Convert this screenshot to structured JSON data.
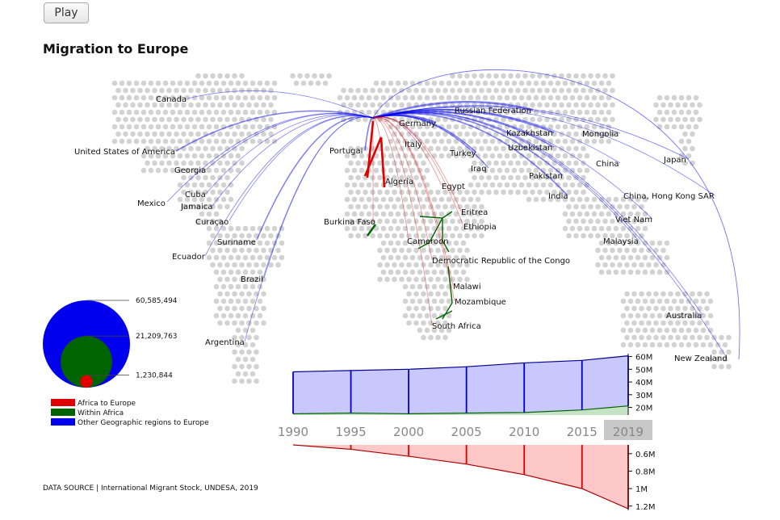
{
  "controls": {
    "play_label": "Play"
  },
  "title": "Migration to Europe",
  "source": "DATA SOURCE | International Migrant Stock, UNDESA, 2019",
  "colors": {
    "africa_to_europe": "#e00000",
    "within_africa": "#006400",
    "other_to_europe": "#0000ee"
  },
  "chart_data": [
    {
      "type": "map",
      "title": "Migration to Europe",
      "countries": [
        {
          "name": "Canada",
          "group": "other"
        },
        {
          "name": "United States of America",
          "group": "other"
        },
        {
          "name": "Georgia",
          "group": "other"
        },
        {
          "name": "Mexico",
          "group": "other"
        },
        {
          "name": "Cuba",
          "group": "other"
        },
        {
          "name": "Jamaica",
          "group": "other"
        },
        {
          "name": "Curaçao",
          "group": "other"
        },
        {
          "name": "Suriname",
          "group": "other"
        },
        {
          "name": "Ecuador",
          "group": "other"
        },
        {
          "name": "Brazil",
          "group": "other"
        },
        {
          "name": "Argentina",
          "group": "other"
        },
        {
          "name": "Portugal",
          "group": "other"
        },
        {
          "name": "Germany",
          "group": "other"
        },
        {
          "name": "Italy",
          "group": "other"
        },
        {
          "name": "Russian Federation",
          "group": "other"
        },
        {
          "name": "Kazakhstan",
          "group": "other"
        },
        {
          "name": "Uzbekistan",
          "group": "other"
        },
        {
          "name": "Turkey",
          "group": "other"
        },
        {
          "name": "Iraq",
          "group": "other"
        },
        {
          "name": "Pakistan",
          "group": "other"
        },
        {
          "name": "India",
          "group": "other"
        },
        {
          "name": "Mongolia",
          "group": "other"
        },
        {
          "name": "China",
          "group": "other"
        },
        {
          "name": "Japan",
          "group": "other"
        },
        {
          "name": "China, Hong Kong SAR",
          "group": "other"
        },
        {
          "name": "Viet Nam",
          "group": "other"
        },
        {
          "name": "Malaysia",
          "group": "other"
        },
        {
          "name": "Australia",
          "group": "other"
        },
        {
          "name": "New Zealand",
          "group": "other"
        },
        {
          "name": "Algeria",
          "group": "africa"
        },
        {
          "name": "Egypt",
          "group": "africa"
        },
        {
          "name": "Eritrea",
          "group": "africa"
        },
        {
          "name": "Ethiopia",
          "group": "africa"
        },
        {
          "name": "Burkina Faso",
          "group": "africa"
        },
        {
          "name": "Cameroon",
          "group": "africa"
        },
        {
          "name": "Democratic Republic of the Congo",
          "group": "africa"
        },
        {
          "name": "Malawi",
          "group": "africa"
        },
        {
          "name": "Mozambique",
          "group": "africa"
        },
        {
          "name": "South Africa",
          "group": "africa"
        }
      ]
    },
    {
      "type": "bubble-legend",
      "values": [
        60585494,
        21209763,
        1230844
      ],
      "labels": [
        "60,585,494",
        "21,209,763",
        "1,230,844"
      ],
      "legend": [
        "Africa to Europe",
        "Within Africa",
        "Other Geographic regions to Europe"
      ]
    },
    {
      "type": "area",
      "x": [
        1990,
        1995,
        2000,
        2005,
        2010,
        2015,
        2019
      ],
      "series": [
        {
          "name": "Other Geographic regions to Europe",
          "values": [
            48,
            49,
            50,
            52,
            55,
            57,
            60.6
          ]
        },
        {
          "name": "Within Africa",
          "values": [
            15,
            15.5,
            15,
            15.5,
            16,
            18,
            21.2
          ]
        }
      ],
      "yticks": [
        "20M",
        "30M",
        "40M",
        "50M",
        "60M"
      ],
      "ylim": [
        14,
        61
      ],
      "selected": 2019
    },
    {
      "type": "area",
      "x": [
        1990,
        1995,
        2000,
        2005,
        2010,
        2015,
        2019
      ],
      "series": [
        {
          "name": "Africa to Europe",
          "values": [
            0.5,
            0.55,
            0.63,
            0.72,
            0.84,
            1.0,
            1.23
          ]
        }
      ],
      "yticks": [
        "0.6M",
        "0.8M",
        "1M",
        "1.2M"
      ],
      "ylim": [
        0.5,
        1.23
      ],
      "inverted": true
    }
  ]
}
